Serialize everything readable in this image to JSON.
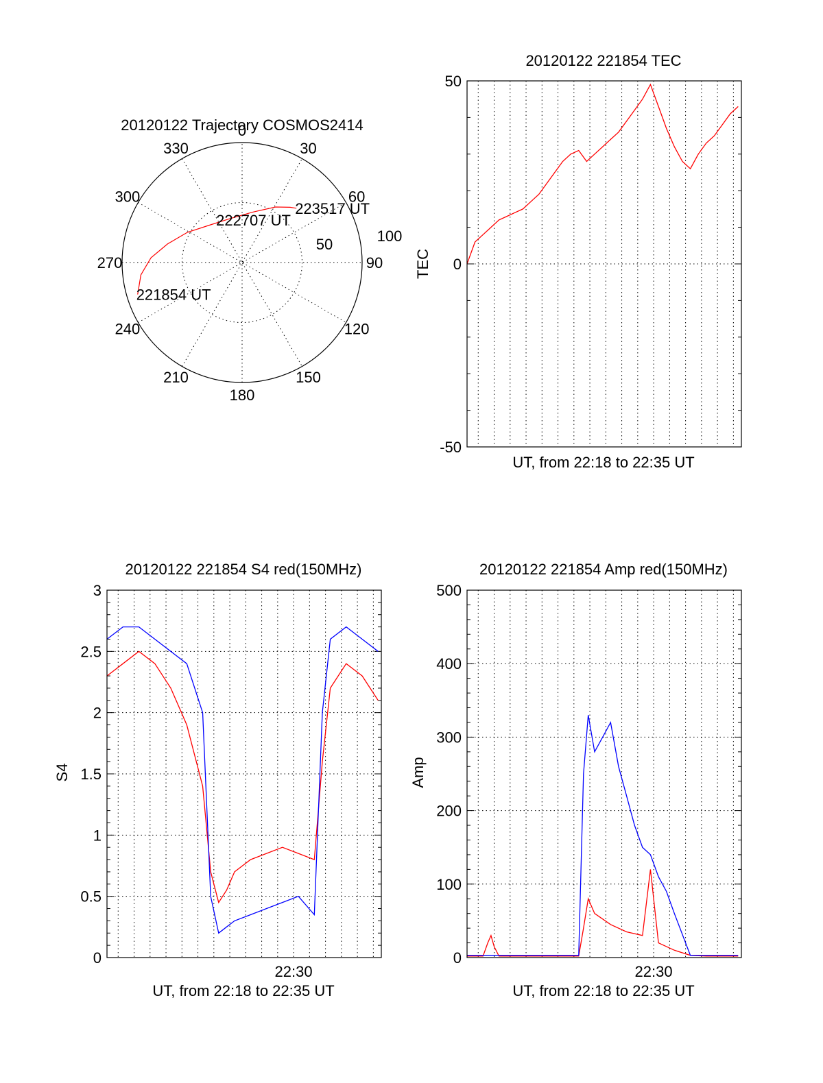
{
  "colors": {
    "red": "#ff0000",
    "blue": "#0000ff",
    "axis": "#000000"
  },
  "chart_data": [
    {
      "type": "polar",
      "title": "20120122 Trajectory COSMOS2414",
      "azimuth_labels": [
        "0",
        "30",
        "60",
        "90",
        "120",
        "150",
        "180",
        "210",
        "240",
        "270",
        "300",
        "330"
      ],
      "radial_labels": [
        "50",
        "100"
      ],
      "trajectory": {
        "color": "red",
        "points": [
          {
            "az": 253,
            "r": 91
          },
          {
            "az": 263,
            "r": 85
          },
          {
            "az": 273,
            "r": 76
          },
          {
            "az": 284,
            "r": 64
          },
          {
            "az": 299,
            "r": 52
          },
          {
            "az": 320,
            "r": 41
          },
          {
            "az": 345,
            "r": 38
          },
          {
            "az": 12,
            "r": 43
          },
          {
            "az": 31,
            "r": 54
          },
          {
            "az": 41,
            "r": 61
          },
          {
            "az": 45,
            "r": 64
          }
        ],
        "annotations": [
          {
            "text": "221854 UT",
            "az": 253,
            "r": 91
          },
          {
            "text": "222707 UT",
            "az": 330,
            "r": 41
          },
          {
            "text": "223517 UT",
            "az": 45,
            "r": 64
          }
        ]
      }
    },
    {
      "type": "line",
      "title": "20120122 221854 TEC",
      "xlabel": "UT, from 22:18 to 22:35 UT",
      "ylabel": "TEC",
      "ylim": [
        -50,
        50
      ],
      "yticks": [
        "-50",
        "0",
        "50"
      ],
      "xlim_minutes": [
        22.3,
        39.5
      ],
      "xtick_labels": [],
      "series": [
        {
          "color": "red",
          "x": [
            0,
            0.5,
            1,
            1.5,
            2,
            2.5,
            3,
            3.5,
            4,
            4.5,
            5,
            5.5,
            6,
            6.5,
            7,
            7.5,
            8,
            8.5,
            9,
            9.5,
            10,
            10.5,
            11,
            11.5,
            12,
            12.5,
            13,
            13.5,
            14,
            14.5,
            15,
            15.5,
            16,
            16.5,
            17
          ],
          "y": [
            0,
            6,
            8,
            10,
            12,
            13,
            14,
            15,
            17,
            19,
            22,
            25,
            28,
            30,
            31,
            28,
            30,
            32,
            34,
            36,
            39,
            42,
            45,
            49,
            43,
            37,
            32,
            28,
            26,
            30,
            33,
            35,
            38,
            41,
            43
          ]
        }
      ]
    },
    {
      "type": "line",
      "title": "20120122 221854 S4 red(150MHz)",
      "xlabel": "UT, from 22:18 to 22:35 UT",
      "ylabel": "S4",
      "ylim": [
        0,
        3
      ],
      "yticks": [
        "0",
        "0.5",
        "1",
        "1.5",
        "2",
        "2.5",
        "3"
      ],
      "xlim_minutes": [
        22.3,
        39.5
      ],
      "xtick_labels": [
        {
          "label": "22:30",
          "minute": 34
        }
      ],
      "series": [
        {
          "color": "red",
          "x": [
            0,
            1,
            2,
            3,
            4,
            5,
            6,
            6.5,
            7,
            7.5,
            8,
            9,
            10,
            11,
            12,
            13,
            13.5,
            14,
            15,
            16,
            17
          ],
          "y": [
            2.3,
            2.4,
            2.5,
            2.4,
            2.2,
            1.9,
            1.4,
            0.7,
            0.45,
            0.55,
            0.7,
            0.8,
            0.85,
            0.9,
            0.85,
            0.8,
            1.6,
            2.2,
            2.4,
            2.3,
            2.1
          ]
        },
        {
          "color": "blue",
          "x": [
            0,
            1,
            2,
            3,
            4,
            5,
            6,
            6.5,
            7,
            7.5,
            8,
            9,
            10,
            11,
            12,
            13,
            13.5,
            14,
            15,
            16,
            17
          ],
          "y": [
            2.6,
            2.7,
            2.7,
            2.6,
            2.5,
            2.4,
            2.0,
            0.5,
            0.2,
            0.25,
            0.3,
            0.35,
            0.4,
            0.45,
            0.5,
            0.35,
            2.0,
            2.6,
            2.7,
            2.6,
            2.5
          ]
        }
      ]
    },
    {
      "type": "line",
      "title": "20120122 221854 Amp red(150MHz)",
      "xlabel": "UT, from 22:18 to 22:35 UT",
      "ylabel": "Amp",
      "ylim": [
        0,
        500
      ],
      "yticks": [
        "0",
        "100",
        "200",
        "300",
        "400",
        "500"
      ],
      "xlim_minutes": [
        22.3,
        39.5
      ],
      "xtick_labels": [
        {
          "label": "22:30",
          "minute": 34
        }
      ],
      "series": [
        {
          "color": "red",
          "x": [
            0,
            1,
            1.3,
            1.5,
            1.7,
            2,
            7,
            7.3,
            7.6,
            8,
            9,
            10,
            11,
            11.5,
            12,
            13,
            14,
            15,
            17
          ],
          "y": [
            2,
            2,
            20,
            30,
            15,
            2,
            2,
            40,
            80,
            60,
            45,
            35,
            30,
            120,
            20,
            10,
            3,
            2,
            2
          ]
        },
        {
          "color": "blue",
          "x": [
            0,
            7,
            7.3,
            7.6,
            8,
            8.5,
            9,
            9.5,
            10,
            10.5,
            11,
            11.5,
            12,
            12.5,
            13,
            14,
            15,
            17
          ],
          "y": [
            3,
            3,
            250,
            330,
            280,
            300,
            320,
            260,
            220,
            180,
            150,
            140,
            110,
            90,
            60,
            3,
            3,
            3
          ]
        }
      ]
    }
  ]
}
